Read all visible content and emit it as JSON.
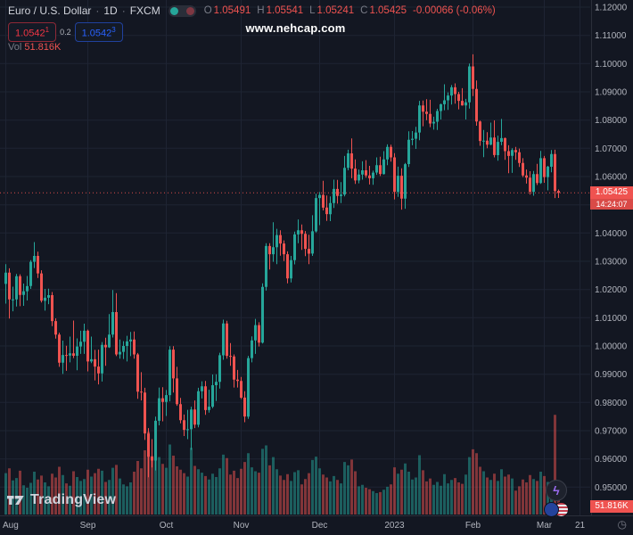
{
  "header": {
    "symbol": "Euro / U.S. Dollar",
    "dot": "·",
    "interval": "1D",
    "exchange": "FXCM",
    "ohlc": {
      "o_label": "O",
      "o": "1.05491",
      "h_label": "H",
      "h": "1.05541",
      "l_label": "L",
      "l": "1.05241",
      "c_label": "C",
      "c": "1.05425",
      "change": "-0.00066 (-0.06%)"
    },
    "sell": {
      "value": "1.05421",
      "main": "1.0542",
      "sup": "1"
    },
    "spread": "0.2",
    "buy": {
      "value": "1.05423",
      "main": "1.0542",
      "sup": "3"
    },
    "vol_label": "Vol",
    "vol_value": "51.816K"
  },
  "watermark": "www.nehcap.com",
  "price_scale": {
    "current_price": "1.05425",
    "countdown": "14:24:07",
    "volume_badge": "51.816K"
  },
  "footer": {
    "logo_text": "TradingView"
  },
  "icons": {
    "lightning": "ϟ",
    "clock": "◷"
  },
  "colors": {
    "background": "#131722",
    "up": "#26a69a",
    "down": "#ef5350",
    "grid": "#1e2433",
    "axis_text": "#b2b5be",
    "separator": "#2a2e39",
    "accent_red": "#f23645",
    "accent_blue": "#2962ff",
    "muted_text": "#787b86",
    "title_text": "#d1d4dc",
    "watermark_text": "#ffffff"
  },
  "chart_data": {
    "type": "candlestick",
    "title": "Euro / U.S. Dollar",
    "symbol": "EUR/USD",
    "timeframe": "1D",
    "exchange": "FXCM",
    "last_price": 1.05425,
    "price_range": [
      0.94,
      1.12
    ],
    "price_ticks": [
      1.12,
      1.11,
      1.1,
      1.09,
      1.08,
      1.07,
      1.06,
      1.05,
      1.04,
      1.03,
      1.02,
      1.01,
      1.0,
      0.99,
      0.98,
      0.97,
      0.96,
      0.95
    ],
    "time_ticks": [
      {
        "label": "Aug",
        "i": 0
      },
      {
        "label": "Sep",
        "i": 23
      },
      {
        "label": "Oct",
        "i": 45
      },
      {
        "label": "Nov",
        "i": 66
      },
      {
        "label": "Dec",
        "i": 88
      },
      {
        "label": "2023",
        "i": 109
      },
      {
        "label": "Feb",
        "i": 131
      },
      {
        "label": "Mar",
        "i": 151
      },
      {
        "label": "21",
        "i": 161
      }
    ],
    "volume_axis_max_k": 220,
    "candle_format": "[open, high, low, close, volume_k]",
    "candles": [
      [
        1.022,
        1.029,
        1.015,
        1.026,
        85
      ],
      [
        1.026,
        1.0275,
        1.0097,
        1.0165,
        95
      ],
      [
        1.0165,
        1.021,
        1.0123,
        1.0165,
        70
      ],
      [
        1.0165,
        1.0255,
        1.014,
        1.0247,
        75
      ],
      [
        1.0247,
        1.0254,
        1.0141,
        1.0181,
        90
      ],
      [
        1.0181,
        1.0221,
        1.0142,
        1.0194,
        60
      ],
      [
        1.0194,
        1.0248,
        1.0161,
        1.0212,
        55
      ],
      [
        1.0212,
        1.0304,
        1.0202,
        1.0298,
        65
      ],
      [
        1.0298,
        1.0368,
        1.0276,
        1.0319,
        88
      ],
      [
        1.0319,
        1.0334,
        1.0241,
        1.0257,
        72
      ],
      [
        1.0257,
        1.0268,
        1.0154,
        1.016,
        80
      ],
      [
        1.016,
        1.0202,
        1.0125,
        1.0171,
        66
      ],
      [
        1.0171,
        1.0203,
        1.0148,
        1.018,
        58
      ],
      [
        1.018,
        1.0191,
        1.007,
        1.0088,
        84
      ],
      [
        1.0088,
        1.0098,
        1.0026,
        1.004,
        76
      ],
      [
        1.004,
        1.0047,
        0.9926,
        0.9941,
        98
      ],
      [
        0.9941,
        1.0019,
        0.9901,
        0.9968,
        81
      ],
      [
        0.9968,
        1.0001,
        0.9912,
        0.9966,
        64
      ],
      [
        0.9966,
        1.0033,
        0.9942,
        0.9974,
        59
      ],
      [
        0.9974,
        1.009,
        0.9957,
        0.9965,
        89
      ],
      [
        0.9965,
        1.0027,
        0.9914,
        0.9998,
        77
      ],
      [
        0.9998,
        1.0054,
        0.9972,
        1.0015,
        69
      ],
      [
        1.0015,
        1.0079,
        0.9972,
        1.0054,
        73
      ],
      [
        1.0054,
        1.0058,
        0.991,
        0.9945,
        92
      ],
      [
        0.9945,
        1.0033,
        0.9939,
        0.9953,
        78
      ],
      [
        0.9953,
        0.9986,
        0.9878,
        0.9927,
        85
      ],
      [
        0.9927,
        0.9987,
        0.9864,
        0.9903,
        94
      ],
      [
        0.9903,
        1.0014,
        0.9874,
        1.0004,
        90
      ],
      [
        1.0004,
        1.0029,
        0.993,
        0.9995,
        67
      ],
      [
        0.9995,
        1.0113,
        0.9993,
        1.004,
        71
      ],
      [
        1.004,
        1.0198,
        1.003,
        1.012,
        96
      ],
      [
        1.012,
        1.0187,
        0.9964,
        0.997,
        102
      ],
      [
        0.997,
        1.0023,
        0.9955,
        0.9979,
        74
      ],
      [
        0.9979,
        1.0017,
        0.9954,
        1.0,
        62
      ],
      [
        1.0,
        1.0036,
        0.9945,
        1.0016,
        58
      ],
      [
        1.0016,
        1.005,
        0.9964,
        1.0023,
        66
      ],
      [
        1.0023,
        1.0051,
        0.9955,
        0.997,
        88
      ],
      [
        0.997,
        0.9975,
        0.9813,
        0.9838,
        110
      ],
      [
        0.9838,
        0.9907,
        0.9807,
        0.9835,
        95
      ],
      [
        0.9835,
        0.9852,
        0.9667,
        0.969,
        132
      ],
      [
        0.969,
        0.9709,
        0.9535,
        0.9608,
        170
      ],
      [
        0.9608,
        0.967,
        0.957,
        0.9594,
        120
      ],
      [
        0.9594,
        0.975,
        0.9559,
        0.9735,
        128
      ],
      [
        0.9735,
        0.9853,
        0.9719,
        0.9815,
        118
      ],
      [
        0.9815,
        0.9854,
        0.9733,
        0.9802,
        104
      ],
      [
        0.9802,
        0.9844,
        0.9752,
        0.9826,
        96
      ],
      [
        0.9826,
        0.9999,
        0.9804,
        0.9987,
        144
      ],
      [
        0.9987,
        0.9999,
        0.9835,
        0.9885,
        121
      ],
      [
        0.9885,
        0.9926,
        0.9788,
        0.9794,
        99
      ],
      [
        0.9794,
        0.9816,
        0.9726,
        0.9737,
        92
      ],
      [
        0.9737,
        0.9757,
        0.9681,
        0.9703,
        85
      ],
      [
        0.9703,
        0.9774,
        0.967,
        0.9705,
        78
      ],
      [
        0.9705,
        0.9785,
        0.9632,
        0.9775,
        137
      ],
      [
        0.9775,
        0.9807,
        0.9709,
        0.9721,
        100
      ],
      [
        0.9721,
        0.9852,
        0.9712,
        0.984,
        93
      ],
      [
        0.984,
        0.9875,
        0.9814,
        0.9857,
        86
      ],
      [
        0.9857,
        0.9876,
        0.9756,
        0.9773,
        79
      ],
      [
        0.9773,
        0.9845,
        0.9764,
        0.9785,
        72
      ],
      [
        0.9785,
        0.9899,
        0.978,
        0.9861,
        84
      ],
      [
        0.9861,
        0.99,
        0.9805,
        0.9873,
        77
      ],
      [
        0.9873,
        0.9976,
        0.9849,
        0.9967,
        95
      ],
      [
        0.9967,
        1.0093,
        0.9951,
        1.008,
        123
      ],
      [
        1.008,
        1.0089,
        0.9955,
        0.9965,
        116
      ],
      [
        0.9965,
        1.001,
        0.993,
        0.9963,
        82
      ],
      [
        0.9963,
        0.997,
        0.9853,
        0.9881,
        90
      ],
      [
        0.9881,
        0.9915,
        0.9853,
        0.9876,
        75
      ],
      [
        0.9876,
        0.989,
        0.9812,
        0.9817,
        94
      ],
      [
        0.9817,
        0.984,
        0.973,
        0.975,
        108
      ],
      [
        0.975,
        0.9965,
        0.9742,
        0.9957,
        126
      ],
      [
        0.9957,
        1.0034,
        0.9942,
        1.002,
        97
      ],
      [
        1.002,
        1.0096,
        0.9972,
        1.0074,
        89
      ],
      [
        1.0074,
        1.0084,
        0.9998,
        1.0012,
        86
      ],
      [
        1.0012,
        1.0222,
        1.0009,
        1.0209,
        135
      ],
      [
        1.0209,
        1.0364,
        1.0196,
        1.0354,
        142
      ],
      [
        1.0354,
        1.0364,
        1.0271,
        1.0325,
        101
      ],
      [
        1.0325,
        1.0438,
        1.0298,
        1.035,
        118
      ],
      [
        1.035,
        1.0415,
        1.029,
        1.0393,
        93
      ],
      [
        1.0393,
        1.041,
        1.032,
        1.0363,
        80
      ],
      [
        1.0363,
        1.0374,
        1.0301,
        1.0325,
        71
      ],
      [
        1.0325,
        1.0335,
        1.0222,
        1.0239,
        83
      ],
      [
        1.0239,
        1.0319,
        1.0225,
        1.0304,
        69
      ],
      [
        1.0304,
        1.0405,
        1.0289,
        1.0395,
        87
      ],
      [
        1.0395,
        1.0448,
        1.0364,
        1.041,
        91
      ],
      [
        1.041,
        1.043,
        1.034,
        1.0397,
        62
      ],
      [
        1.0397,
        1.0407,
        1.0318,
        1.0344,
        73
      ],
      [
        1.0344,
        1.0394,
        1.029,
        1.0327,
        85
      ],
      [
        1.0327,
        1.0463,
        1.0319,
        1.0406,
        112
      ],
      [
        1.0406,
        1.0539,
        1.0402,
        1.0524,
        119
      ],
      [
        1.0524,
        1.0545,
        1.0428,
        1.0535,
        95
      ],
      [
        1.0535,
        1.0585,
        1.048,
        1.049,
        82
      ],
      [
        1.049,
        1.0533,
        1.0443,
        1.0467,
        76
      ],
      [
        1.0467,
        1.053,
        1.0442,
        1.0506,
        68
      ],
      [
        1.0506,
        1.0589,
        1.0489,
        1.0556,
        79
      ],
      [
        1.0556,
        1.0588,
        1.0504,
        1.0531,
        71
      ],
      [
        1.0531,
        1.058,
        1.0506,
        1.0536,
        64
      ],
      [
        1.0536,
        1.0673,
        1.053,
        1.0631,
        108
      ],
      [
        1.0631,
        1.0695,
        1.0622,
        1.0682,
        101
      ],
      [
        1.0682,
        1.0735,
        1.0594,
        1.0628,
        113
      ],
      [
        1.0628,
        1.0661,
        1.0574,
        1.0586,
        89
      ],
      [
        1.0586,
        1.0625,
        1.0576,
        1.0607,
        58
      ],
      [
        1.0607,
        1.0654,
        1.0589,
        1.0622,
        61
      ],
      [
        1.0622,
        1.0658,
        1.0596,
        1.0604,
        55
      ],
      [
        1.0604,
        1.0638,
        1.0572,
        1.0594,
        52
      ],
      [
        1.0594,
        1.0621,
        1.0571,
        1.0614,
        48
      ],
      [
        1.0614,
        1.0668,
        1.0606,
        1.064,
        44
      ],
      [
        1.064,
        1.067,
        1.0602,
        1.0609,
        46
      ],
      [
        1.0609,
        1.069,
        1.0607,
        1.0661,
        51
      ],
      [
        1.0661,
        1.0714,
        1.064,
        1.0705,
        57
      ],
      [
        1.0705,
        1.0713,
        1.0653,
        1.0668,
        62
      ],
      [
        1.0668,
        1.0683,
        1.0519,
        1.0546,
        97
      ],
      [
        1.0546,
        1.0635,
        1.0528,
        1.0603,
        84
      ],
      [
        1.0603,
        1.0629,
        1.0483,
        1.0522,
        92
      ],
      [
        1.0522,
        1.0648,
        1.0486,
        1.0644,
        105
      ],
      [
        1.0644,
        1.076,
        1.0634,
        1.073,
        88
      ],
      [
        1.073,
        1.0761,
        1.0711,
        1.0734,
        72
      ],
      [
        1.0734,
        1.0776,
        1.0698,
        1.0756,
        76
      ],
      [
        1.0756,
        1.0868,
        1.0729,
        1.0852,
        122
      ],
      [
        1.0852,
        1.0869,
        1.0778,
        1.083,
        91
      ],
      [
        1.083,
        1.0874,
        1.08,
        1.0822,
        68
      ],
      [
        1.0822,
        1.0872,
        1.0775,
        1.0788,
        74
      ],
      [
        1.0788,
        1.0812,
        1.0766,
        1.0794,
        61
      ],
      [
        1.0794,
        1.084,
        1.0765,
        1.0832,
        67
      ],
      [
        1.0832,
        1.0858,
        1.0802,
        1.0856,
        59
      ],
      [
        1.0856,
        1.0927,
        1.0835,
        1.087,
        83
      ],
      [
        1.087,
        1.0898,
        1.0836,
        1.0887,
        64
      ],
      [
        1.0887,
        1.0924,
        1.0855,
        1.0916,
        71
      ],
      [
        1.0916,
        1.093,
        1.0858,
        1.0892,
        75
      ],
      [
        1.0892,
        1.09,
        1.0838,
        1.0868,
        66
      ],
      [
        1.0868,
        1.0913,
        1.0851,
        1.0852,
        63
      ],
      [
        1.0852,
        1.0875,
        1.0802,
        1.0863,
        82
      ],
      [
        1.0863,
        1.1,
        1.0841,
        1.099,
        118
      ],
      [
        1.099,
        1.1033,
        1.0885,
        1.091,
        134
      ],
      [
        1.091,
        1.094,
        1.078,
        1.0795,
        126
      ],
      [
        1.0795,
        1.0798,
        1.0709,
        1.0726,
        98
      ],
      [
        1.0726,
        1.0765,
        1.0669,
        1.0727,
        89
      ],
      [
        1.0727,
        1.0757,
        1.07,
        1.0713,
        76
      ],
      [
        1.0713,
        1.0791,
        1.0711,
        1.0738,
        71
      ],
      [
        1.0738,
        1.0799,
        1.0668,
        1.0676,
        84
      ],
      [
        1.0676,
        1.0745,
        1.0656,
        1.0723,
        69
      ],
      [
        1.0723,
        1.0804,
        1.0711,
        1.0736,
        93
      ],
      [
        1.0736,
        1.0738,
        1.0659,
        1.069,
        78
      ],
      [
        1.069,
        1.0711,
        1.0612,
        1.0673,
        82
      ],
      [
        1.0673,
        1.07,
        1.0613,
        1.0694,
        74
      ],
      [
        1.0694,
        1.0705,
        1.0659,
        1.0686,
        49
      ],
      [
        1.0686,
        1.0699,
        1.0634,
        1.0648,
        58
      ],
      [
        1.0648,
        1.0665,
        1.0598,
        1.0604,
        72
      ],
      [
        1.0604,
        1.0625,
        1.0575,
        1.0596,
        66
      ],
      [
        1.0596,
        1.0619,
        1.0536,
        1.0546,
        81
      ],
      [
        1.0546,
        1.062,
        1.0532,
        1.0609,
        73
      ],
      [
        1.0609,
        1.0645,
        1.057,
        1.0577,
        69
      ],
      [
        1.0577,
        1.0691,
        1.0574,
        1.0665,
        88
      ],
      [
        1.0665,
        1.0673,
        1.0578,
        1.0598,
        79
      ],
      [
        1.0598,
        1.0638,
        1.0551,
        1.0635,
        67
      ],
      [
        1.0635,
        1.0694,
        1.0615,
        1.068,
        61
      ],
      [
        1.068,
        1.0695,
        1.0524,
        1.0549,
        205
      ],
      [
        1.05491,
        1.05541,
        1.05241,
        1.05425,
        51.816
      ]
    ]
  }
}
